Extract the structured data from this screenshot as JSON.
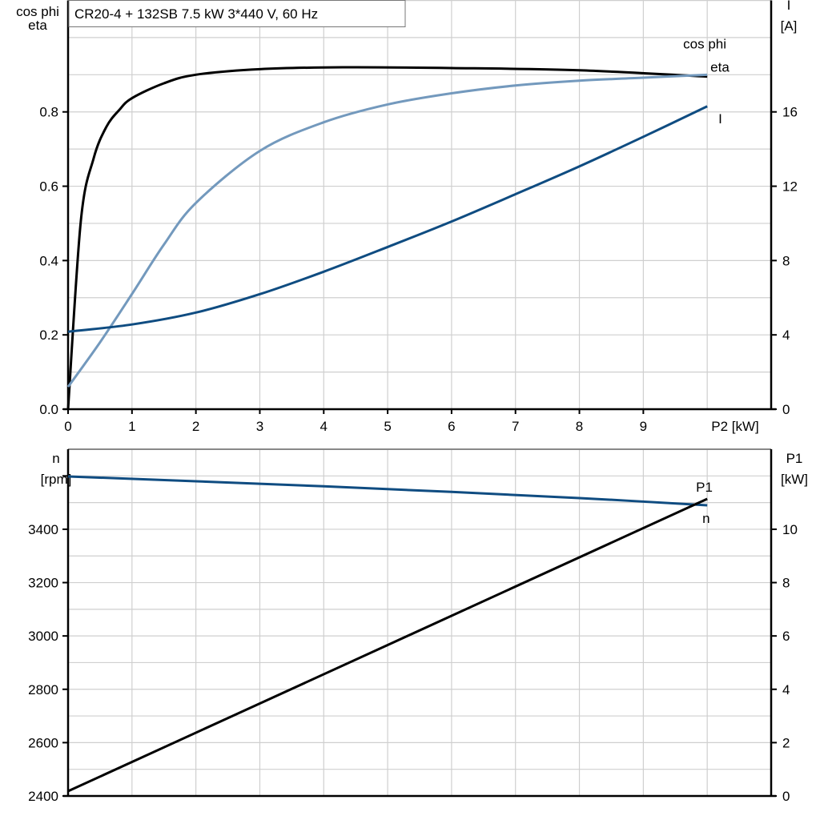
{
  "chart_data": [
    {
      "type": "line",
      "title": "CR20-4 + 132SB   7.5 kW   3*440 V, 60 Hz",
      "xlabel": "P2 [kW]",
      "ylabel_left": [
        "cos phi",
        "eta"
      ],
      "ylabel_right": [
        "I",
        "[A]"
      ],
      "xlim": [
        0,
        11
      ],
      "ylim_left": [
        0,
        1.1
      ],
      "ylim_right": [
        0,
        22
      ],
      "xticks": [
        0,
        1,
        2,
        3,
        4,
        5,
        6,
        7,
        8,
        9
      ],
      "yticks_left": [
        "0.0",
        "0.2",
        "0.4",
        "0.6",
        "0.8"
      ],
      "yticks_right": [
        "0",
        "4",
        "8",
        "12",
        "16"
      ],
      "grid": true,
      "series": [
        {
          "name": "eta",
          "axis": "left",
          "color": "#000000",
          "x": [
            0,
            0.2,
            0.4,
            0.6,
            0.8,
            1.0,
            1.5,
            2,
            3,
            4.3,
            6,
            8,
            10
          ],
          "y": [
            0,
            0.507,
            0.675,
            0.76,
            0.805,
            0.837,
            0.877,
            0.9,
            0.915,
            0.92,
            0.918,
            0.912,
            0.895
          ]
        },
        {
          "name": "cos phi",
          "axis": "left",
          "color": "#7399bd",
          "x": [
            0,
            0.5,
            1,
            1.5,
            2,
            3,
            4,
            5,
            6,
            7,
            8,
            9,
            10
          ],
          "y": [
            0.06,
            0.18,
            0.31,
            0.443,
            0.555,
            0.695,
            0.772,
            0.82,
            0.85,
            0.871,
            0.884,
            0.892,
            0.9
          ]
        },
        {
          "name": "I",
          "axis": "right",
          "color": "#0f4c81",
          "x": [
            0,
            1,
            2,
            3,
            4,
            5,
            6,
            7,
            8,
            9,
            10
          ],
          "y": [
            4.17,
            4.56,
            5.2,
            6.19,
            7.4,
            8.73,
            10.1,
            11.57,
            13.07,
            14.66,
            16.3
          ]
        }
      ]
    },
    {
      "type": "line",
      "xlim": [
        0,
        11
      ],
      "ylabel_left": [
        "n",
        "[rpm]"
      ],
      "ylabel_right": [
        "P1",
        "[kW]"
      ],
      "ylim_left": [
        2400,
        3700
      ],
      "ylim_right": [
        0,
        13
      ],
      "yticks_left": [
        "2400",
        "2600",
        "2800",
        "3000",
        "3200",
        "3400"
      ],
      "yticks_right": [
        "0",
        "2",
        "4",
        "6",
        "8",
        "10"
      ],
      "grid": true,
      "series": [
        {
          "name": "n",
          "axis": "left",
          "color": "#0f4c81",
          "x": [
            0,
            2,
            4,
            6,
            8,
            10
          ],
          "y": [
            3598,
            3580,
            3561,
            3540,
            3517,
            3490
          ]
        },
        {
          "name": "P1",
          "axis": "right",
          "color": "#000000",
          "x": [
            0,
            10
          ],
          "y": [
            0.18,
            11.14
          ]
        }
      ]
    }
  ]
}
